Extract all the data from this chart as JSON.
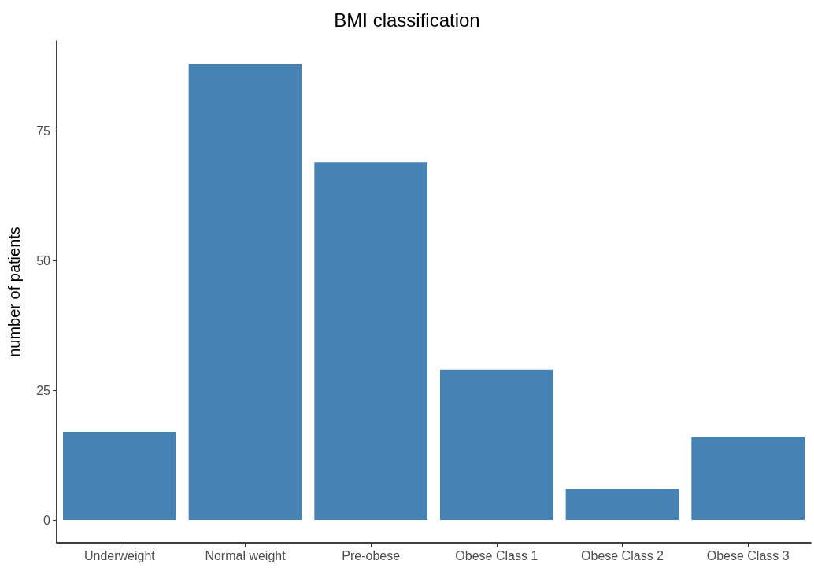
{
  "chart_data": {
    "type": "bar",
    "title": "BMI classification",
    "ylabel": "number of patients",
    "categories": [
      "Underweight",
      "Normal weight",
      "Pre-obese",
      "Obese Class 1",
      "Obese Class 2",
      "Obese Class 3"
    ],
    "values": [
      17,
      88,
      69,
      29,
      6,
      16
    ],
    "color": "#4682b4",
    "ylim": [
      -4.4,
      92.4
    ],
    "yticks": [
      0,
      25,
      50,
      75
    ],
    "grid": false
  }
}
